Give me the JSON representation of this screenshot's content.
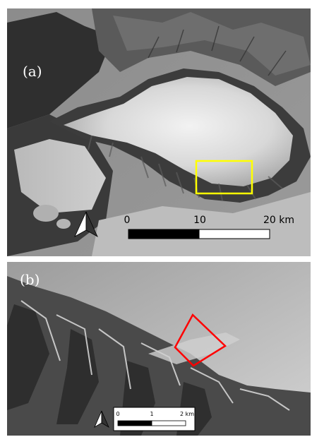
{
  "panel_a": {
    "label": "(a)",
    "scale": {
      "ticks": [
        "0",
        "10",
        "20 km"
      ],
      "segments_km": 20
    },
    "highlight_box_color": "#ffff00",
    "north_arrow": "north-arrow-icon"
  },
  "panel_b": {
    "label": "(b)",
    "scale": {
      "ticks": [
        "0",
        "1",
        "2 km"
      ],
      "segments_km": 2
    },
    "highlight_box_color": "#ff0000",
    "north_arrow": "north-arrow-icon"
  }
}
